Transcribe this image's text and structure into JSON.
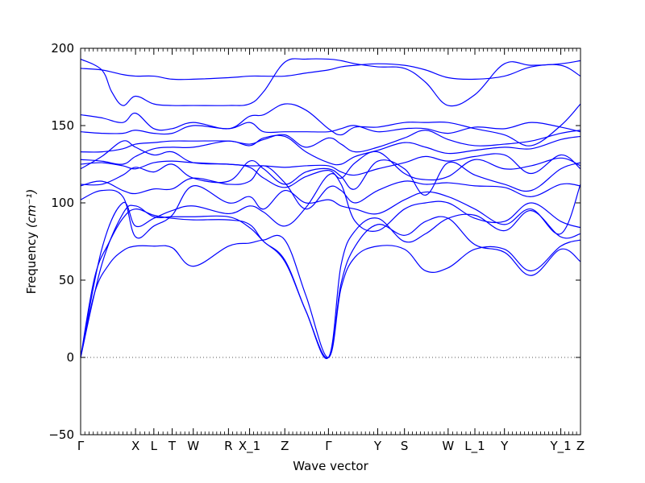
{
  "chart_data": {
    "type": "line",
    "xlabel": "Wave vector",
    "ylabel": "Frequency",
    "ylabel_unit": "(cm⁻¹)",
    "ylim": [
      -50,
      200
    ],
    "yticks": [
      -50,
      0,
      50,
      100,
      150,
      200
    ],
    "xlim": [
      0,
      35.5
    ],
    "grid": false,
    "zero_line": {
      "y": 0,
      "style": "dotted",
      "color": "#555555"
    },
    "line_color": "#0000ff",
    "high_symmetry_points": [
      {
        "label": "Γ",
        "x": 0
      },
      {
        "label": "X",
        "x": 3.9
      },
      {
        "label": "L",
        "x": 5.2
      },
      {
        "label": "T",
        "x": 6.5
      },
      {
        "label": "W",
        "x": 8.0
      },
      {
        "label": "R",
        "x": 10.5
      },
      {
        "label": "X_1",
        "x": 12.0
      },
      {
        "label": "Z",
        "x": 14.5
      },
      {
        "label": "Γ",
        "x": 17.6
      },
      {
        "label": "Y",
        "x": 21.1
      },
      {
        "label": "S",
        "x": 23.0
      },
      {
        "label": "W",
        "x": 26.1
      },
      {
        "label": "L_1",
        "x": 28.0
      },
      {
        "label": "Y",
        "x": 30.1
      },
      {
        "label": "Y_1",
        "x": 34.1
      },
      {
        "label": "Z",
        "x": 35.5
      }
    ],
    "series": [
      {
        "x": [
          0,
          1,
          2,
          3,
          3.9,
          5.2,
          6.5,
          8.0,
          10.5,
          12.0,
          13,
          14.5,
          16,
          17.6,
          18.5,
          19.5,
          21.1,
          23.0,
          24.5,
          26.1,
          28.0,
          30.1,
          32,
          34.1,
          35.5
        ],
        "y": [
          0,
          42,
          60,
          69,
          72,
          72,
          71,
          59,
          72,
          74,
          76,
          76,
          40,
          0,
          45,
          65,
          72,
          70,
          56,
          58,
          70,
          70,
          56,
          72,
          76
        ]
      },
      {
        "x": [
          0,
          1,
          2,
          3,
          3.9,
          5.2,
          6.5,
          8.0,
          10.5,
          12.0,
          13,
          14.5,
          16,
          17.6,
          18.5,
          19.5,
          21.1,
          23.0,
          24.5,
          26.1,
          28.0,
          30.1,
          32,
          34.1,
          35.5
        ],
        "y": [
          0,
          52,
          74,
          90,
          96,
          92,
          90,
          89,
          89,
          86,
          75,
          63,
          30,
          0,
          48,
          72,
          86,
          79,
          88,
          90,
          73,
          68,
          53,
          70,
          62
        ]
      },
      {
        "x": [
          0,
          1.5,
          3.0,
          3.9,
          5.2,
          6.5,
          8.0,
          10.5,
          12.0,
          13,
          14.5,
          16,
          17.6,
          18.5,
          19.5,
          21.1,
          23.0,
          24.5,
          26.1,
          28.0,
          30.1,
          32,
          34.1,
          35.5
        ],
        "y": [
          0,
          60,
          93,
          98,
          91,
          91,
          91,
          91,
          84,
          75,
          62,
          30,
          0,
          60,
          82,
          90,
          75,
          80,
          90,
          92,
          82,
          95,
          78,
          80
        ]
      },
      {
        "x": [
          0,
          1.5,
          3.0,
          3.9,
          5.2,
          6.5,
          8.0,
          10.5,
          12.0,
          13,
          14.5,
          16,
          17.6,
          18.5,
          19.5,
          21.1,
          23.0,
          24.5,
          26.1,
          28.0,
          30.1,
          32,
          34.1,
          35.5
        ],
        "y": [
          0,
          70,
          100,
          85,
          90,
          95,
          98,
          93,
          98,
          94,
          85,
          97,
          118,
          112,
          88,
          82,
          96,
          100,
          100,
          90,
          88,
          100,
          88,
          84
        ]
      },
      {
        "x": [
          0,
          1.5,
          3.0,
          3.9,
          5.2,
          6.5,
          8.0,
          10.5,
          12.0,
          13,
          14.5,
          16,
          17.6,
          18.5,
          19.5,
          21.1,
          23.0,
          24.5,
          26.1,
          28.0,
          30.1,
          32,
          34.1,
          35.5
        ],
        "y": [
          102,
          108,
          104,
          78,
          85,
          92,
          111,
          100,
          104,
          96,
          108,
          100,
          102,
          98,
          96,
          93,
          102,
          107,
          104,
          96,
          86,
          96,
          80,
          112
        ]
      },
      {
        "x": [
          0,
          1.5,
          3.0,
          3.9,
          5.2,
          6.5,
          8.0,
          10.5,
          12.0,
          13,
          14.5,
          16,
          17.6,
          18.5,
          19.5,
          21.1,
          23.0,
          24.5,
          26.1,
          28.0,
          30.1,
          32,
          34.1,
          35.5
        ],
        "y": [
          111,
          114,
          108,
          106,
          109,
          109,
          116,
          112,
          114,
          124,
          113,
          96,
          110,
          108,
          100,
          108,
          114,
          112,
          113,
          111,
          110,
          104,
          112,
          111
        ]
      },
      {
        "x": [
          0,
          1.5,
          3.0,
          3.9,
          5.2,
          6.5,
          8.0,
          10.5,
          12.0,
          13,
          14.5,
          16,
          17.6,
          18.5,
          19.5,
          21.1,
          23.0,
          24.5,
          26.1,
          28.0,
          30.1,
          32,
          34.1,
          35.5
        ],
        "y": [
          112,
          112,
          118,
          123,
          120,
          125,
          116,
          114,
          127,
          122,
          112,
          120,
          122,
          117,
          109,
          127,
          122,
          105,
          126,
          118,
          112,
          108,
          122,
          126
        ]
      },
      {
        "x": [
          0,
          1.5,
          3.0,
          3.9,
          5.2,
          6.5,
          8.0,
          10.5,
          12.0,
          13,
          14.5,
          16,
          17.6,
          18.5,
          19.5,
          21.1,
          23.0,
          24.5,
          26.1,
          28.0,
          30.1,
          32,
          34.1,
          35.5
        ],
        "y": [
          122,
          130,
          140,
          136,
          131,
          133,
          126,
          125,
          123,
          116,
          110,
          117,
          121,
          116,
          126,
          133,
          119,
          115,
          117,
          128,
          122,
          124,
          129,
          124
        ]
      },
      {
        "x": [
          0,
          1.5,
          3.0,
          3.9,
          5.2,
          6.5,
          8.0,
          10.5,
          12.0,
          13,
          14.5,
          16,
          17.6,
          18.5,
          19.5,
          21.1,
          23.0,
          24.5,
          26.1,
          28.0,
          30.1,
          32,
          34.1,
          35.5
        ],
        "y": [
          125,
          126,
          124,
          122,
          126,
          127,
          126,
          125,
          124,
          124,
          123,
          124,
          124,
          120,
          118,
          122,
          126,
          130,
          127,
          130,
          131,
          119,
          131,
          122
        ]
      },
      {
        "x": [
          0,
          1.5,
          3.0,
          3.9,
          5.2,
          6.5,
          8.0,
          10.5,
          12.0,
          13,
          14.5,
          16,
          17.6,
          18.5,
          19.5,
          21.1,
          23.0,
          24.5,
          26.1,
          28.0,
          30.1,
          32,
          34.1,
          35.5
        ],
        "y": [
          128,
          127,
          125,
          130,
          135,
          136,
          136,
          140,
          137,
          142,
          143,
          133,
          126,
          125,
          130,
          134,
          139,
          136,
          132,
          134,
          136,
          135,
          141,
          143
        ]
      },
      {
        "x": [
          0,
          1.5,
          3.0,
          3.9,
          5.2,
          6.5,
          8.0,
          10.5,
          12.0,
          13,
          14.5,
          16,
          17.6,
          18.5,
          19.5,
          21.1,
          23.0,
          24.5,
          26.1,
          28.0,
          30.1,
          32,
          34.1,
          35.5
        ],
        "y": [
          133,
          133,
          135,
          138,
          139,
          140,
          140,
          140,
          138,
          141,
          144,
          136,
          142,
          138,
          133,
          136,
          142,
          147,
          141,
          137,
          138,
          140,
          145,
          147
        ]
      },
      {
        "x": [
          0,
          1.5,
          3.0,
          3.9,
          5.2,
          6.5,
          8.0,
          10.5,
          12.0,
          13,
          14.5,
          16,
          17.6,
          18.5,
          19.5,
          21.1,
          23.0,
          24.5,
          26.1,
          28.0,
          30.1,
          32,
          34.1,
          35.5
        ],
        "y": [
          146,
          145,
          145,
          147,
          145,
          145,
          150,
          148,
          152,
          146,
          146,
          146,
          146,
          148,
          150,
          146,
          148,
          148,
          145,
          149,
          148,
          152,
          149,
          146
        ]
      },
      {
        "x": [
          0,
          1.5,
          3.0,
          3.9,
          5.2,
          6.5,
          8.0,
          10.5,
          12.0,
          13,
          14.5,
          16,
          17.6,
          18.5,
          19.5,
          21.1,
          23.0,
          24.5,
          26.1,
          28.0,
          30.1,
          32,
          34.1,
          35.5
        ],
        "y": [
          157,
          155,
          152,
          158,
          148,
          148,
          152,
          148,
          156,
          157,
          164,
          160,
          148,
          144,
          149,
          149,
          152,
          152,
          152,
          148,
          144,
          137,
          150,
          164
        ]
      },
      {
        "x": [
          0,
          1.5,
          2.2,
          3.0,
          3.9,
          5.2,
          6.5,
          8.0,
          10.5,
          12.0,
          13,
          14.5,
          16,
          17.6,
          18.5,
          19.5,
          21.1,
          23.0,
          24.5,
          26.1,
          28.0,
          30.1,
          32,
          34.1,
          35.5
        ],
        "y": [
          193,
          186,
          172,
          163,
          169,
          164,
          163,
          163,
          163,
          164,
          172,
          191,
          193,
          193,
          192,
          190,
          188,
          187,
          178,
          163,
          170,
          190,
          189,
          190,
          192
        ]
      },
      {
        "x": [
          0,
          1.5,
          3.0,
          3.9,
          5.2,
          6.5,
          8.0,
          10.5,
          12.0,
          13,
          14.5,
          16,
          17.6,
          18.5,
          19.5,
          21.1,
          23.0,
          24.5,
          26.1,
          28.0,
          30.1,
          32,
          34.1,
          35.5
        ],
        "y": [
          187,
          186,
          183,
          182,
          182,
          180,
          180,
          181,
          182,
          182,
          182,
          184,
          186,
          188,
          189,
          190,
          189,
          186,
          181,
          180,
          182,
          188,
          189,
          182
        ]
      }
    ]
  }
}
